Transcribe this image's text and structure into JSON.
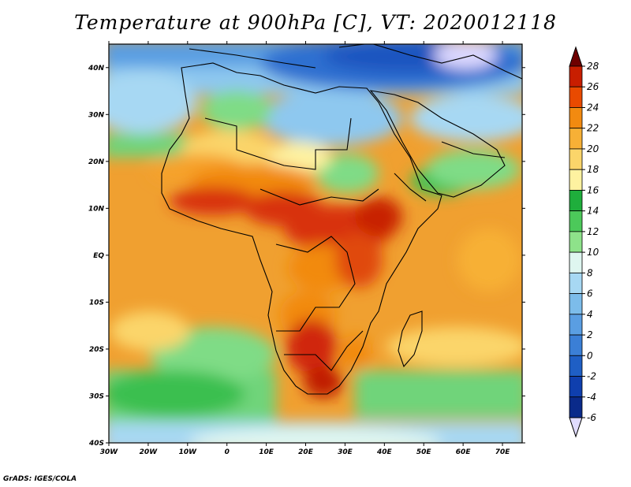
{
  "title": "Temperature at 900hPa [C], VT: 2020012118",
  "credit": "GrADS: IGES/COLA",
  "map": {
    "lon_range": [
      -30,
      75
    ],
    "lat_range": [
      -40,
      45
    ],
    "lon_ticks": [
      "30W",
      "20W",
      "10W",
      "0",
      "10E",
      "20E",
      "30E",
      "40E",
      "50E",
      "60E",
      "70E"
    ],
    "lat_ticks": [
      "40N",
      "30N",
      "20N",
      "10N",
      "EQ",
      "10S",
      "20S",
      "30S",
      "40S"
    ],
    "variable": "Temperature",
    "level": "900hPa",
    "units": "C",
    "valid_time": "2020012118"
  },
  "colorbar": {
    "labels": [
      "28",
      "26",
      "24",
      "22",
      "20",
      "18",
      "16",
      "14",
      "12",
      "10",
      "8",
      "6",
      "4",
      "2",
      "0",
      "-2",
      "-4",
      "-6"
    ],
    "colors": [
      "#6e0000",
      "#c81e00",
      "#e94a00",
      "#f28a10",
      "#f7b036",
      "#fbd56a",
      "#fef2a0",
      "#1fae3c",
      "#4cc95a",
      "#8ee28a",
      "#dff6f0",
      "#a7d8f3",
      "#7cbcea",
      "#5a9ee2",
      "#3b7fd6",
      "#1f5fc5",
      "#0f3fae",
      "#0a2a8a",
      "#e0dcff"
    ]
  }
}
